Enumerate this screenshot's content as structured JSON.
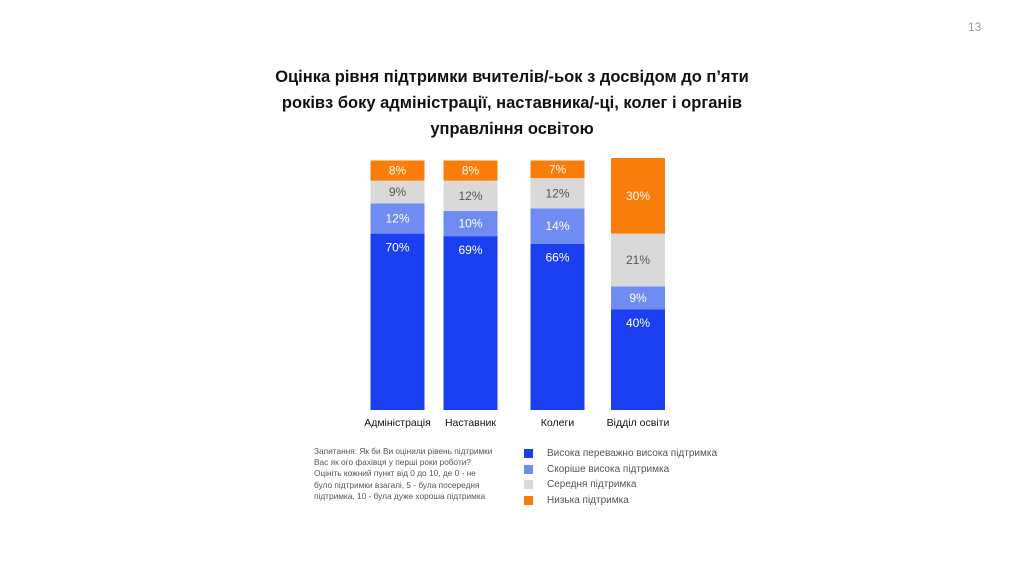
{
  "page_number": "13",
  "title_lines": [
    "Оцінка рівня підтримки вчителів/-ьок з досвідом до п’яти",
    "роківз боку адміністрації, наставника/-ці, колег і органів",
    "управління освітою"
  ],
  "note_lines": [
    "Запитання: Як би Ви оцінили рівень підтримки",
    "Вас як ого фахівця у перші роки роботи?",
    "Оцініть кожний пункт від 0 до 10, де 0 - не",
    "було підтримки взагалі, 5 - була посередня",
    "підтримка, 10 - була дуже хороша підтримка"
  ],
  "legend": [
    {
      "label": "Висока переважно висока підтримка",
      "color": "#1a3ff0"
    },
    {
      "label": "Скоріше висока підтримка",
      "color": "#6f8cf2"
    },
    {
      "label": "Середня підтримка",
      "color": "#d9d9d9"
    },
    {
      "label": "Низька підтримка",
      "color": "#fb7d09"
    }
  ],
  "chart_data": {
    "type": "bar",
    "stacked": true,
    "categories": [
      "Адміністрація",
      "Наставник",
      "Колеги",
      "Відділ освіти"
    ],
    "series": [
      {
        "name": "Висока переважно висока підтримка",
        "values": [
          70,
          69,
          66,
          40
        ],
        "color": "#1a3ff0",
        "label_color": "#ffffff"
      },
      {
        "name": "Скоріше висока підтримка",
        "values": [
          12,
          10,
          14,
          9
        ],
        "color": "#6f8cf2",
        "label_color": "#ffffff"
      },
      {
        "name": "Середня підтримка",
        "values": [
          9,
          12,
          12,
          21
        ],
        "color": "#d9d9d9",
        "label_color": "#555555"
      },
      {
        "name": "Низька підтримка",
        "values": [
          8,
          8,
          7,
          30
        ],
        "color": "#fb7d09",
        "label_color": "#ffffff"
      }
    ],
    "value_suffix": "%",
    "ylim": [
      0,
      100
    ],
    "grid": false,
    "legend_position": "bottom-right"
  }
}
